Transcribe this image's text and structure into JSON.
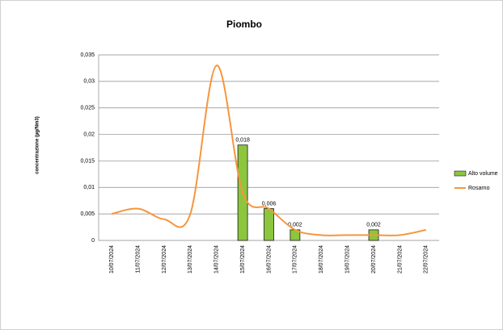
{
  "chart_data": {
    "type": "bar_line",
    "title": "Piombo",
    "ylabel": "concentrazione (µg/Nm3)",
    "categories": [
      "10/07/2024",
      "11/07/2024",
      "12/07/2024",
      "13/07/2024",
      "14/07/2024",
      "15/07/2024",
      "16/07/2024",
      "17/07/2024",
      "18/07/2024",
      "19/07/2024",
      "20/07/2024",
      "21/07/2024",
      "22/07/2024"
    ],
    "series": [
      {
        "name": "Alto volume",
        "type": "bar",
        "color": "#8cc63e",
        "values": [
          null,
          null,
          null,
          null,
          null,
          0.018,
          0.006,
          0.002,
          null,
          null,
          0.002,
          null,
          null
        ],
        "value_labels": [
          null,
          null,
          null,
          null,
          null,
          "0,018",
          "0,006",
          "0,002",
          null,
          null,
          "0,002",
          null,
          null
        ]
      },
      {
        "name": "Rosarno",
        "type": "line",
        "color": "#f7953d",
        "values": [
          0.005,
          0.006,
          0.004,
          0.005,
          0.033,
          0.009,
          0.006,
          0.002,
          0.001,
          0.001,
          0.001,
          0.001,
          0.002
        ]
      }
    ],
    "ylim": [
      0,
      0.035
    ],
    "yticks": [
      0,
      {
        "value": 0.005,
        "label": "0,005"
      },
      {
        "value": 0.01,
        "label": "0,01"
      },
      {
        "value": 0.015,
        "label": "0,015"
      },
      {
        "value": 0.02,
        "label": "0,02"
      },
      {
        "value": 0.025,
        "label": "0,025"
      },
      {
        "value": 0.03,
        "label": "0,03"
      },
      {
        "value": 0.035,
        "label": "0,035"
      }
    ],
    "grid": true,
    "legend": "right"
  }
}
